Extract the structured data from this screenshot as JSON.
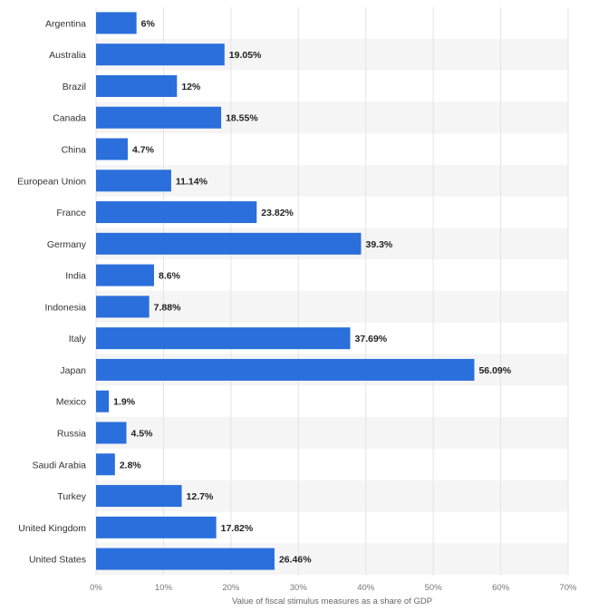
{
  "chart_data": {
    "type": "bar",
    "orientation": "horizontal",
    "categories": [
      "Argentina",
      "Australia",
      "Brazil",
      "Canada",
      "China",
      "European Union",
      "France",
      "Germany",
      "India",
      "Indonesia",
      "Italy",
      "Japan",
      "Mexico",
      "Russia",
      "Saudi Arabia",
      "Turkey",
      "United Kingdom",
      "United States"
    ],
    "values": [
      6,
      19.05,
      12,
      18.55,
      4.7,
      11.14,
      23.82,
      39.3,
      8.6,
      7.88,
      37.69,
      56.09,
      1.9,
      4.5,
      2.8,
      12.7,
      17.82,
      26.46
    ],
    "value_labels": [
      "6%",
      "19.05%",
      "12%",
      "18.55%",
      "4.7%",
      "11.14%",
      "23.82%",
      "39.3%",
      "8.6%",
      "7.88%",
      "37.69%",
      "56.09%",
      "1.9%",
      "4.5%",
      "2.8%",
      "12.7%",
      "17.82%",
      "26.46%"
    ],
    "x_ticks": [
      "0%",
      "10%",
      "20%",
      "30%",
      "40%",
      "50%",
      "60%",
      "70%"
    ],
    "xlim": [
      0,
      70
    ],
    "xlabel": "Value of fiscal stimulus measures as a share of GDP",
    "ylabel": "",
    "title": "",
    "grid": true,
    "bar_color": "#2a6fdb",
    "stripe_color": "#f5f5f5",
    "grid_color": "#e3e3e3"
  }
}
